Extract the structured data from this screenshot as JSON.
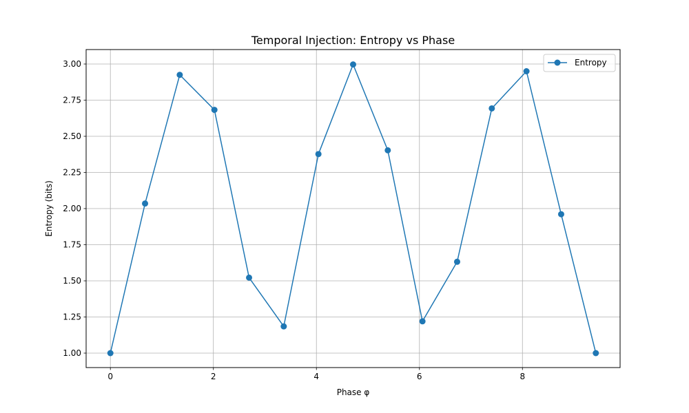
{
  "chart_data": {
    "type": "line",
    "title": "Temporal Injection: Entropy vs Phase",
    "xlabel": "Phase φ",
    "ylabel": "Entropy (bits)",
    "xlim": [
      -0.471,
      9.896
    ],
    "ylim": [
      0.9,
      3.1
    ],
    "xticks": [
      0,
      2,
      4,
      6,
      8
    ],
    "xtick_labels": [
      "0",
      "2",
      "4",
      "6",
      "8"
    ],
    "yticks": [
      1.0,
      1.25,
      1.5,
      1.75,
      2.0,
      2.25,
      2.5,
      2.75,
      3.0
    ],
    "ytick_labels": [
      "1.00",
      "1.25",
      "1.50",
      "1.75",
      "2.00",
      "2.25",
      "2.50",
      "2.75",
      "3.00"
    ],
    "grid": true,
    "legend_position": "top-right",
    "series": [
      {
        "name": "Entropy",
        "color": "#1f77b4",
        "marker": "circle",
        "x": [
          0,
          0.6732,
          1.3464,
          2.0196,
          2.6928,
          3.366,
          4.0392,
          4.7124,
          5.3856,
          6.0588,
          6.732,
          7.4052,
          8.0784,
          8.7516,
          9.4248
        ],
        "y": [
          1.0,
          2.035,
          2.925,
          2.683,
          1.522,
          1.185,
          2.377,
          2.997,
          2.403,
          1.22,
          1.632,
          2.693,
          2.95,
          1.961,
          1.0
        ]
      }
    ]
  }
}
